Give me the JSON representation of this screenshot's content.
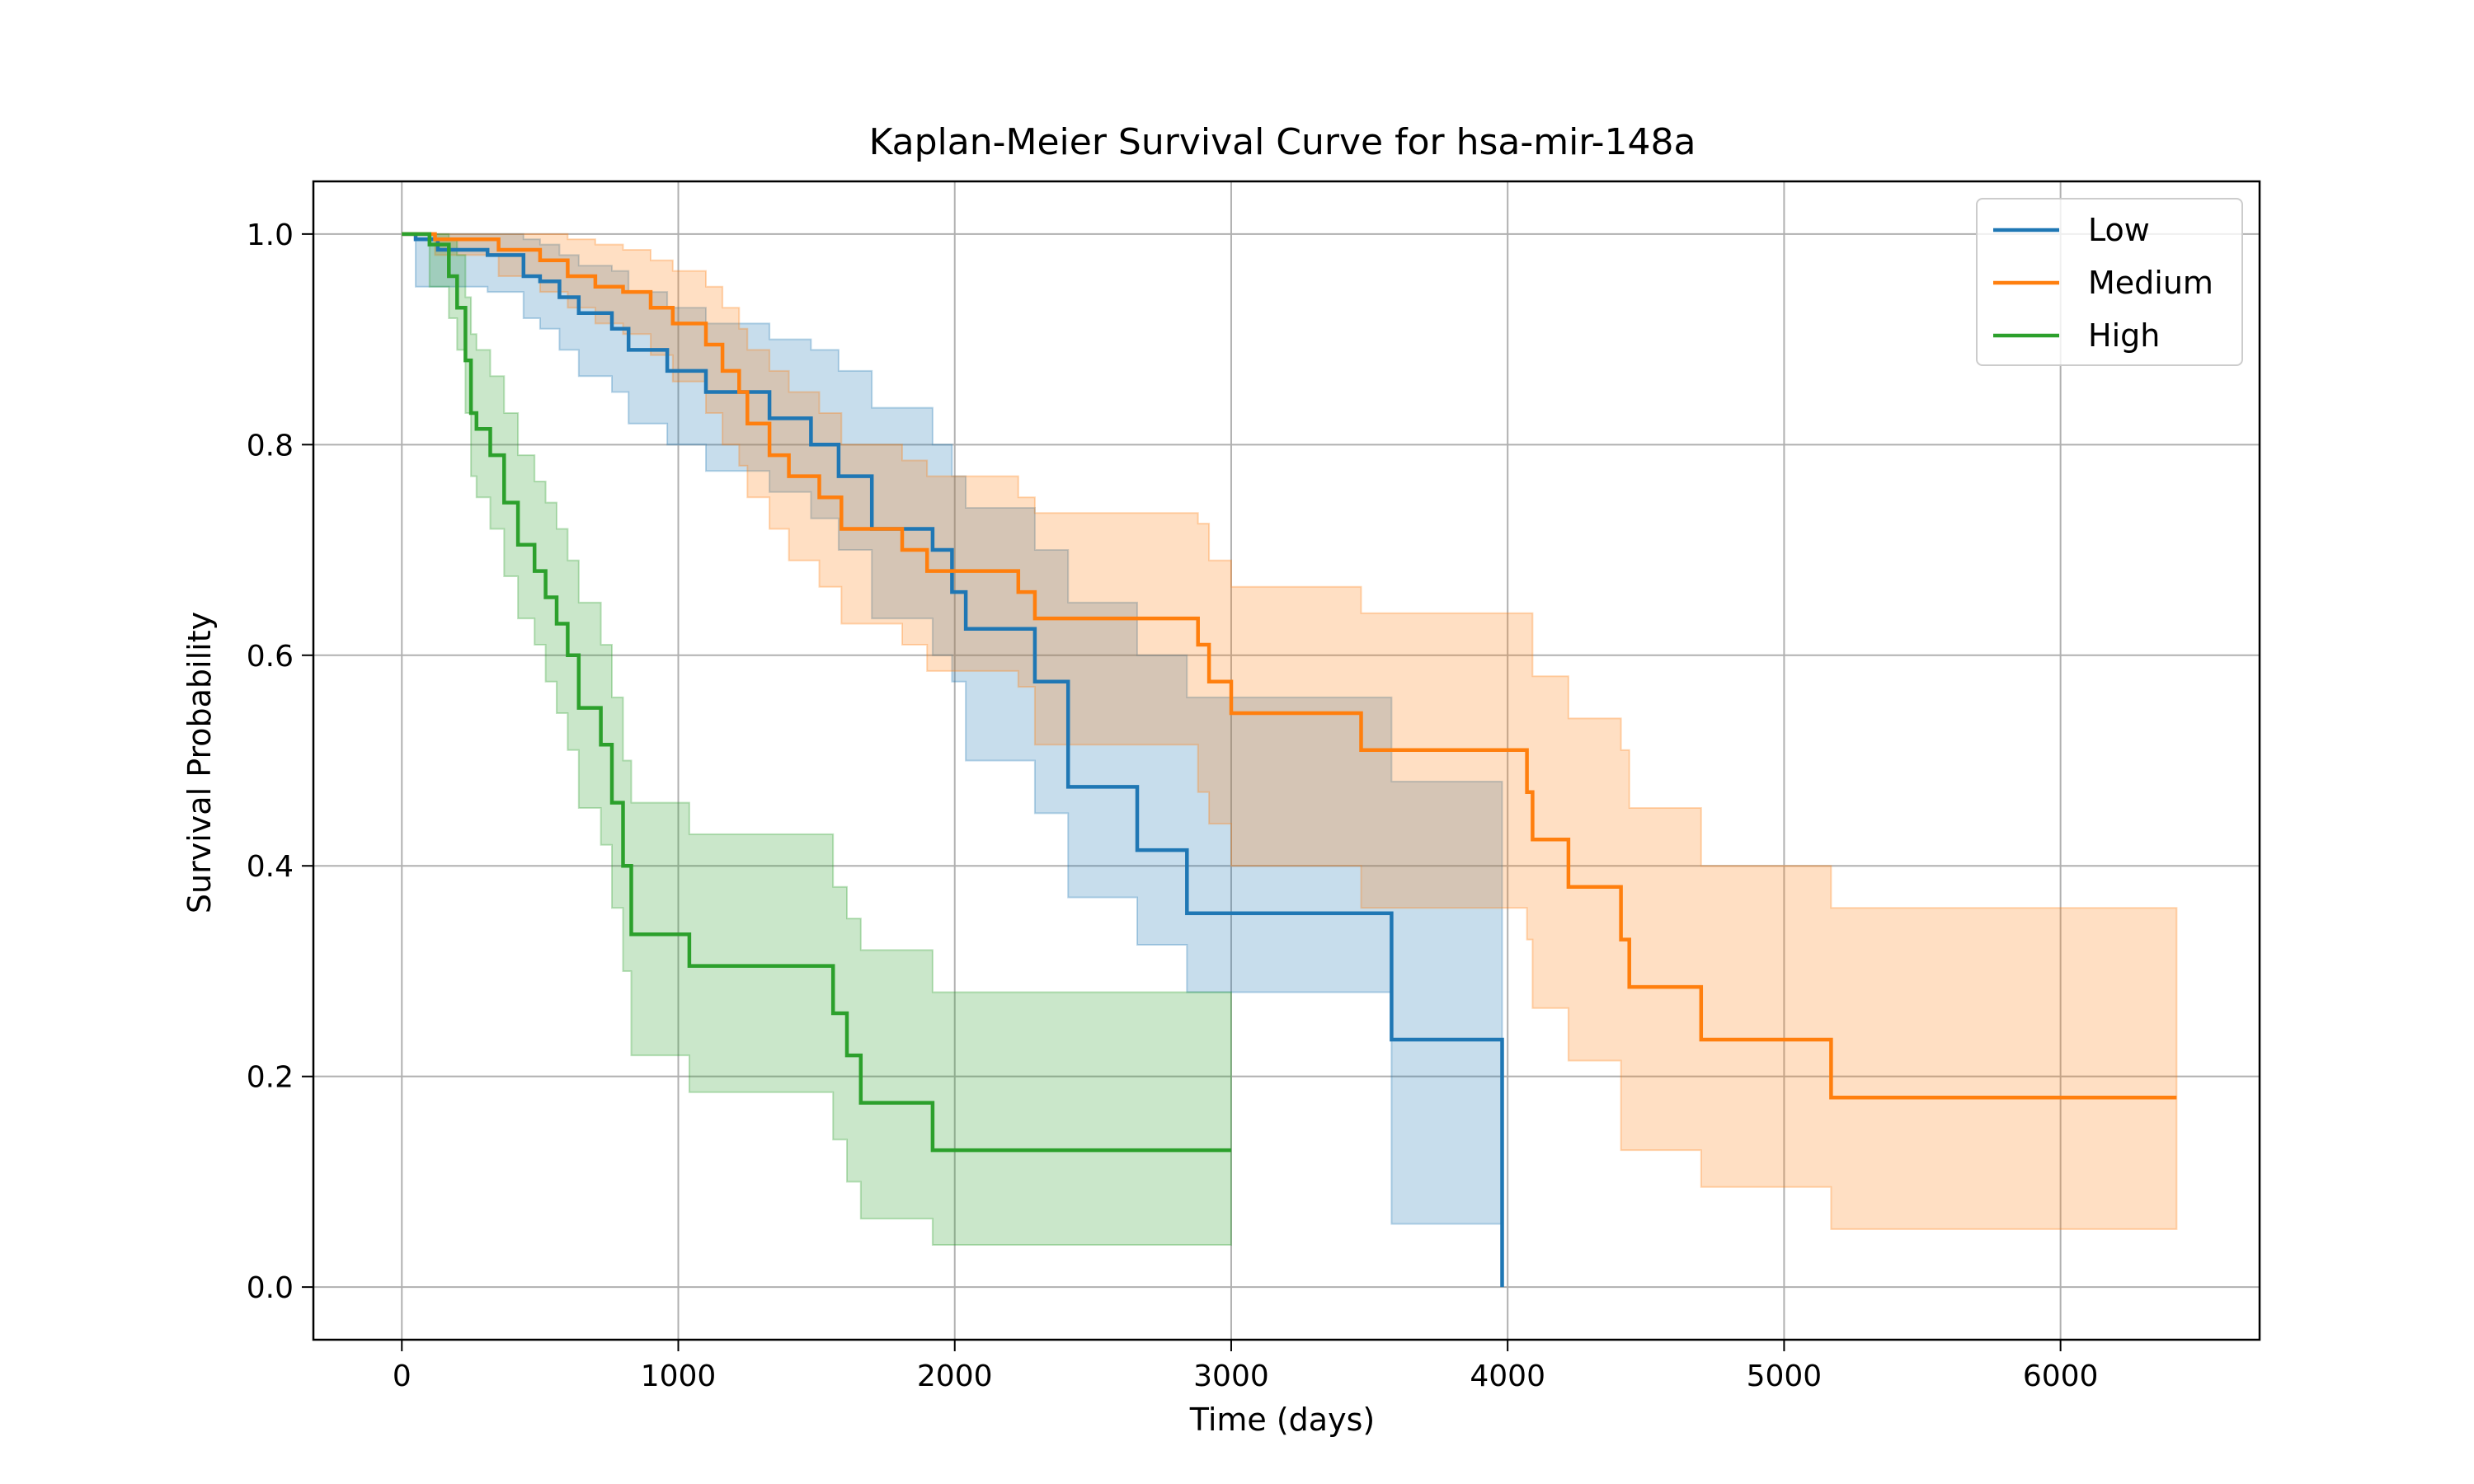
{
  "chart_data": {
    "type": "line",
    "title": "Kaplan-Meier Survival Curve for hsa-mir-148a",
    "xlabel": "Time (days)",
    "ylabel": "Survival Probability",
    "xlim": [
      -320,
      6720
    ],
    "ylim": [
      -0.05,
      1.05
    ],
    "xticks": [
      0,
      1000,
      2000,
      3000,
      4000,
      5000,
      6000
    ],
    "xtick_labels": [
      "0",
      "1000",
      "2000",
      "3000",
      "4000",
      "5000",
      "6000"
    ],
    "yticks": [
      0.0,
      0.2,
      0.4,
      0.6,
      0.8,
      1.0
    ],
    "ytick_labels": [
      "0.0",
      "0.2",
      "0.4",
      "0.6",
      "0.8",
      "1.0"
    ],
    "grid": true,
    "legend_position": "upper-right",
    "series": [
      {
        "name": "Low",
        "color": "#1f77b4",
        "step_times": [
          0,
          50,
          130,
          310,
          440,
          500,
          570,
          640,
          760,
          820,
          960,
          1100,
          1330,
          1480,
          1580,
          1700,
          1920,
          1990,
          2040,
          2290,
          2410,
          2660,
          2840,
          3580,
          3980
        ],
        "survival": [
          1.0,
          0.995,
          0.985,
          0.98,
          0.96,
          0.955,
          0.94,
          0.925,
          0.91,
          0.89,
          0.87,
          0.85,
          0.825,
          0.8,
          0.77,
          0.72,
          0.7,
          0.66,
          0.625,
          0.575,
          0.475,
          0.415,
          0.355,
          0.235,
          0.0
        ],
        "ci_lower": [
          1.0,
          0.95,
          0.95,
          0.945,
          0.92,
          0.91,
          0.89,
          0.865,
          0.85,
          0.82,
          0.8,
          0.775,
          0.755,
          0.73,
          0.7,
          0.635,
          0.6,
          0.575,
          0.5,
          0.45,
          0.37,
          0.325,
          0.28,
          0.06,
          0.06
        ],
        "ci_upper": [
          1.0,
          1.0,
          1.0,
          1.0,
          0.995,
          0.99,
          0.98,
          0.97,
          0.965,
          0.945,
          0.93,
          0.915,
          0.9,
          0.89,
          0.87,
          0.835,
          0.8,
          0.77,
          0.74,
          0.7,
          0.65,
          0.6,
          0.56,
          0.48,
          0.48
        ]
      },
      {
        "name": "Medium",
        "color": "#ff7f0e",
        "step_times": [
          0,
          120,
          350,
          500,
          600,
          700,
          800,
          900,
          980,
          1100,
          1160,
          1220,
          1250,
          1330,
          1400,
          1510,
          1590,
          1810,
          1900,
          2230,
          2290,
          2880,
          2920,
          3000,
          3470,
          4070,
          4090,
          4220,
          4410,
          4440,
          4700,
          5170,
          6420
        ],
        "survival": [
          1.0,
          0.995,
          0.985,
          0.975,
          0.96,
          0.95,
          0.945,
          0.93,
          0.915,
          0.895,
          0.87,
          0.85,
          0.82,
          0.79,
          0.77,
          0.75,
          0.72,
          0.7,
          0.68,
          0.66,
          0.635,
          0.61,
          0.575,
          0.545,
          0.51,
          0.47,
          0.425,
          0.38,
          0.33,
          0.285,
          0.235,
          0.18,
          0.18
        ],
        "ci_lower": [
          1.0,
          0.98,
          0.96,
          0.945,
          0.93,
          0.915,
          0.905,
          0.885,
          0.86,
          0.83,
          0.8,
          0.78,
          0.75,
          0.72,
          0.69,
          0.665,
          0.63,
          0.61,
          0.585,
          0.57,
          0.515,
          0.47,
          0.44,
          0.4,
          0.36,
          0.33,
          0.265,
          0.215,
          0.13,
          0.13,
          0.095,
          0.055,
          0.055
        ],
        "ci_upper": [
          1.0,
          1.0,
          1.0,
          1.0,
          0.995,
          0.99,
          0.985,
          0.975,
          0.965,
          0.95,
          0.93,
          0.91,
          0.89,
          0.87,
          0.85,
          0.83,
          0.8,
          0.785,
          0.77,
          0.75,
          0.735,
          0.725,
          0.69,
          0.665,
          0.64,
          0.64,
          0.58,
          0.54,
          0.51,
          0.455,
          0.4,
          0.36,
          0.36
        ]
      },
      {
        "name": "High",
        "color": "#2ca02c",
        "step_times": [
          0,
          100,
          170,
          200,
          230,
          250,
          270,
          320,
          370,
          420,
          480,
          520,
          560,
          600,
          640,
          720,
          760,
          800,
          830,
          1040,
          1560,
          1610,
          1660,
          1920,
          3000
        ],
        "survival": [
          1.0,
          0.99,
          0.96,
          0.93,
          0.88,
          0.83,
          0.815,
          0.79,
          0.745,
          0.705,
          0.68,
          0.655,
          0.63,
          0.6,
          0.55,
          0.515,
          0.46,
          0.4,
          0.335,
          0.305,
          0.26,
          0.22,
          0.175,
          0.13,
          0.13
        ],
        "ci_lower": [
          1.0,
          0.95,
          0.92,
          0.89,
          0.83,
          0.77,
          0.75,
          0.72,
          0.675,
          0.635,
          0.61,
          0.575,
          0.545,
          0.51,
          0.455,
          0.42,
          0.36,
          0.3,
          0.22,
          0.185,
          0.14,
          0.1,
          0.065,
          0.04,
          0.04
        ],
        "ci_upper": [
          1.0,
          1.0,
          0.995,
          0.98,
          0.94,
          0.905,
          0.89,
          0.865,
          0.83,
          0.79,
          0.765,
          0.745,
          0.72,
          0.69,
          0.65,
          0.61,
          0.56,
          0.5,
          0.46,
          0.43,
          0.38,
          0.35,
          0.32,
          0.28,
          0.28
        ]
      }
    ]
  }
}
